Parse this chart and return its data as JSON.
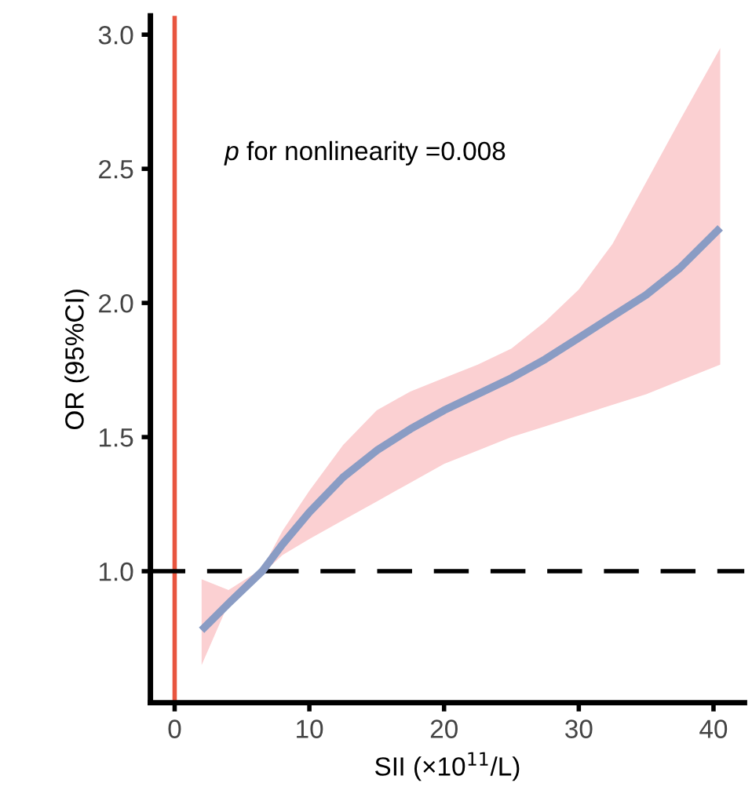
{
  "chart_data": {
    "type": "line",
    "xlabel": "SII (×10$^{11}$/L)",
    "ylabel": "OR (95%CI)",
    "series": [
      {
        "color": "#8a9cc4",
        "x": [
          2,
          4,
          6.5,
          8,
          10,
          12.5,
          15,
          17.5,
          20,
          22.5,
          25,
          27.5,
          30,
          32.5,
          35,
          37.5,
          40.5
        ],
        "values": [
          0.78,
          0.88,
          1.0,
          1.1,
          1.22,
          1.35,
          1.45,
          1.53,
          1.6,
          1.66,
          1.72,
          1.79,
          1.87,
          1.95,
          2.03,
          2.13,
          2.28
        ],
        "lower": [
          0.65,
          0.88,
          0.99,
          1.06,
          1.12,
          1.19,
          1.26,
          1.33,
          1.4,
          1.45,
          1.5,
          1.54,
          1.58,
          1.62,
          1.66,
          1.71,
          1.77
        ],
        "upper": [
          0.97,
          0.93,
          1.01,
          1.15,
          1.3,
          1.47,
          1.6,
          1.67,
          1.72,
          1.77,
          1.83,
          1.93,
          2.05,
          2.22,
          2.45,
          2.68,
          2.95
        ]
      }
    ],
    "xlim": [
      -1.8,
      42.3
    ],
    "ylim": [
      0.51,
      3.07
    ],
    "xticks": [
      0,
      10,
      20,
      30,
      40
    ],
    "yticks": [
      {
        "value": 1,
        "label": "1.0"
      },
      1.5,
      {
        "value": 2,
        "label": "2.0"
      },
      2.5,
      {
        "value": 3,
        "label": "3.0"
      }
    ],
    "ref_lines": [
      {
        "axis": "x",
        "value": 0,
        "color": "#e8553f",
        "line_style": "solid"
      },
      {
        "axis": "y",
        "value": 1,
        "color": "#000000",
        "line_style": "dashed"
      }
    ],
    "annotations": [
      "p for nonlinearity =0.008"
    ],
    "grid": false
  }
}
